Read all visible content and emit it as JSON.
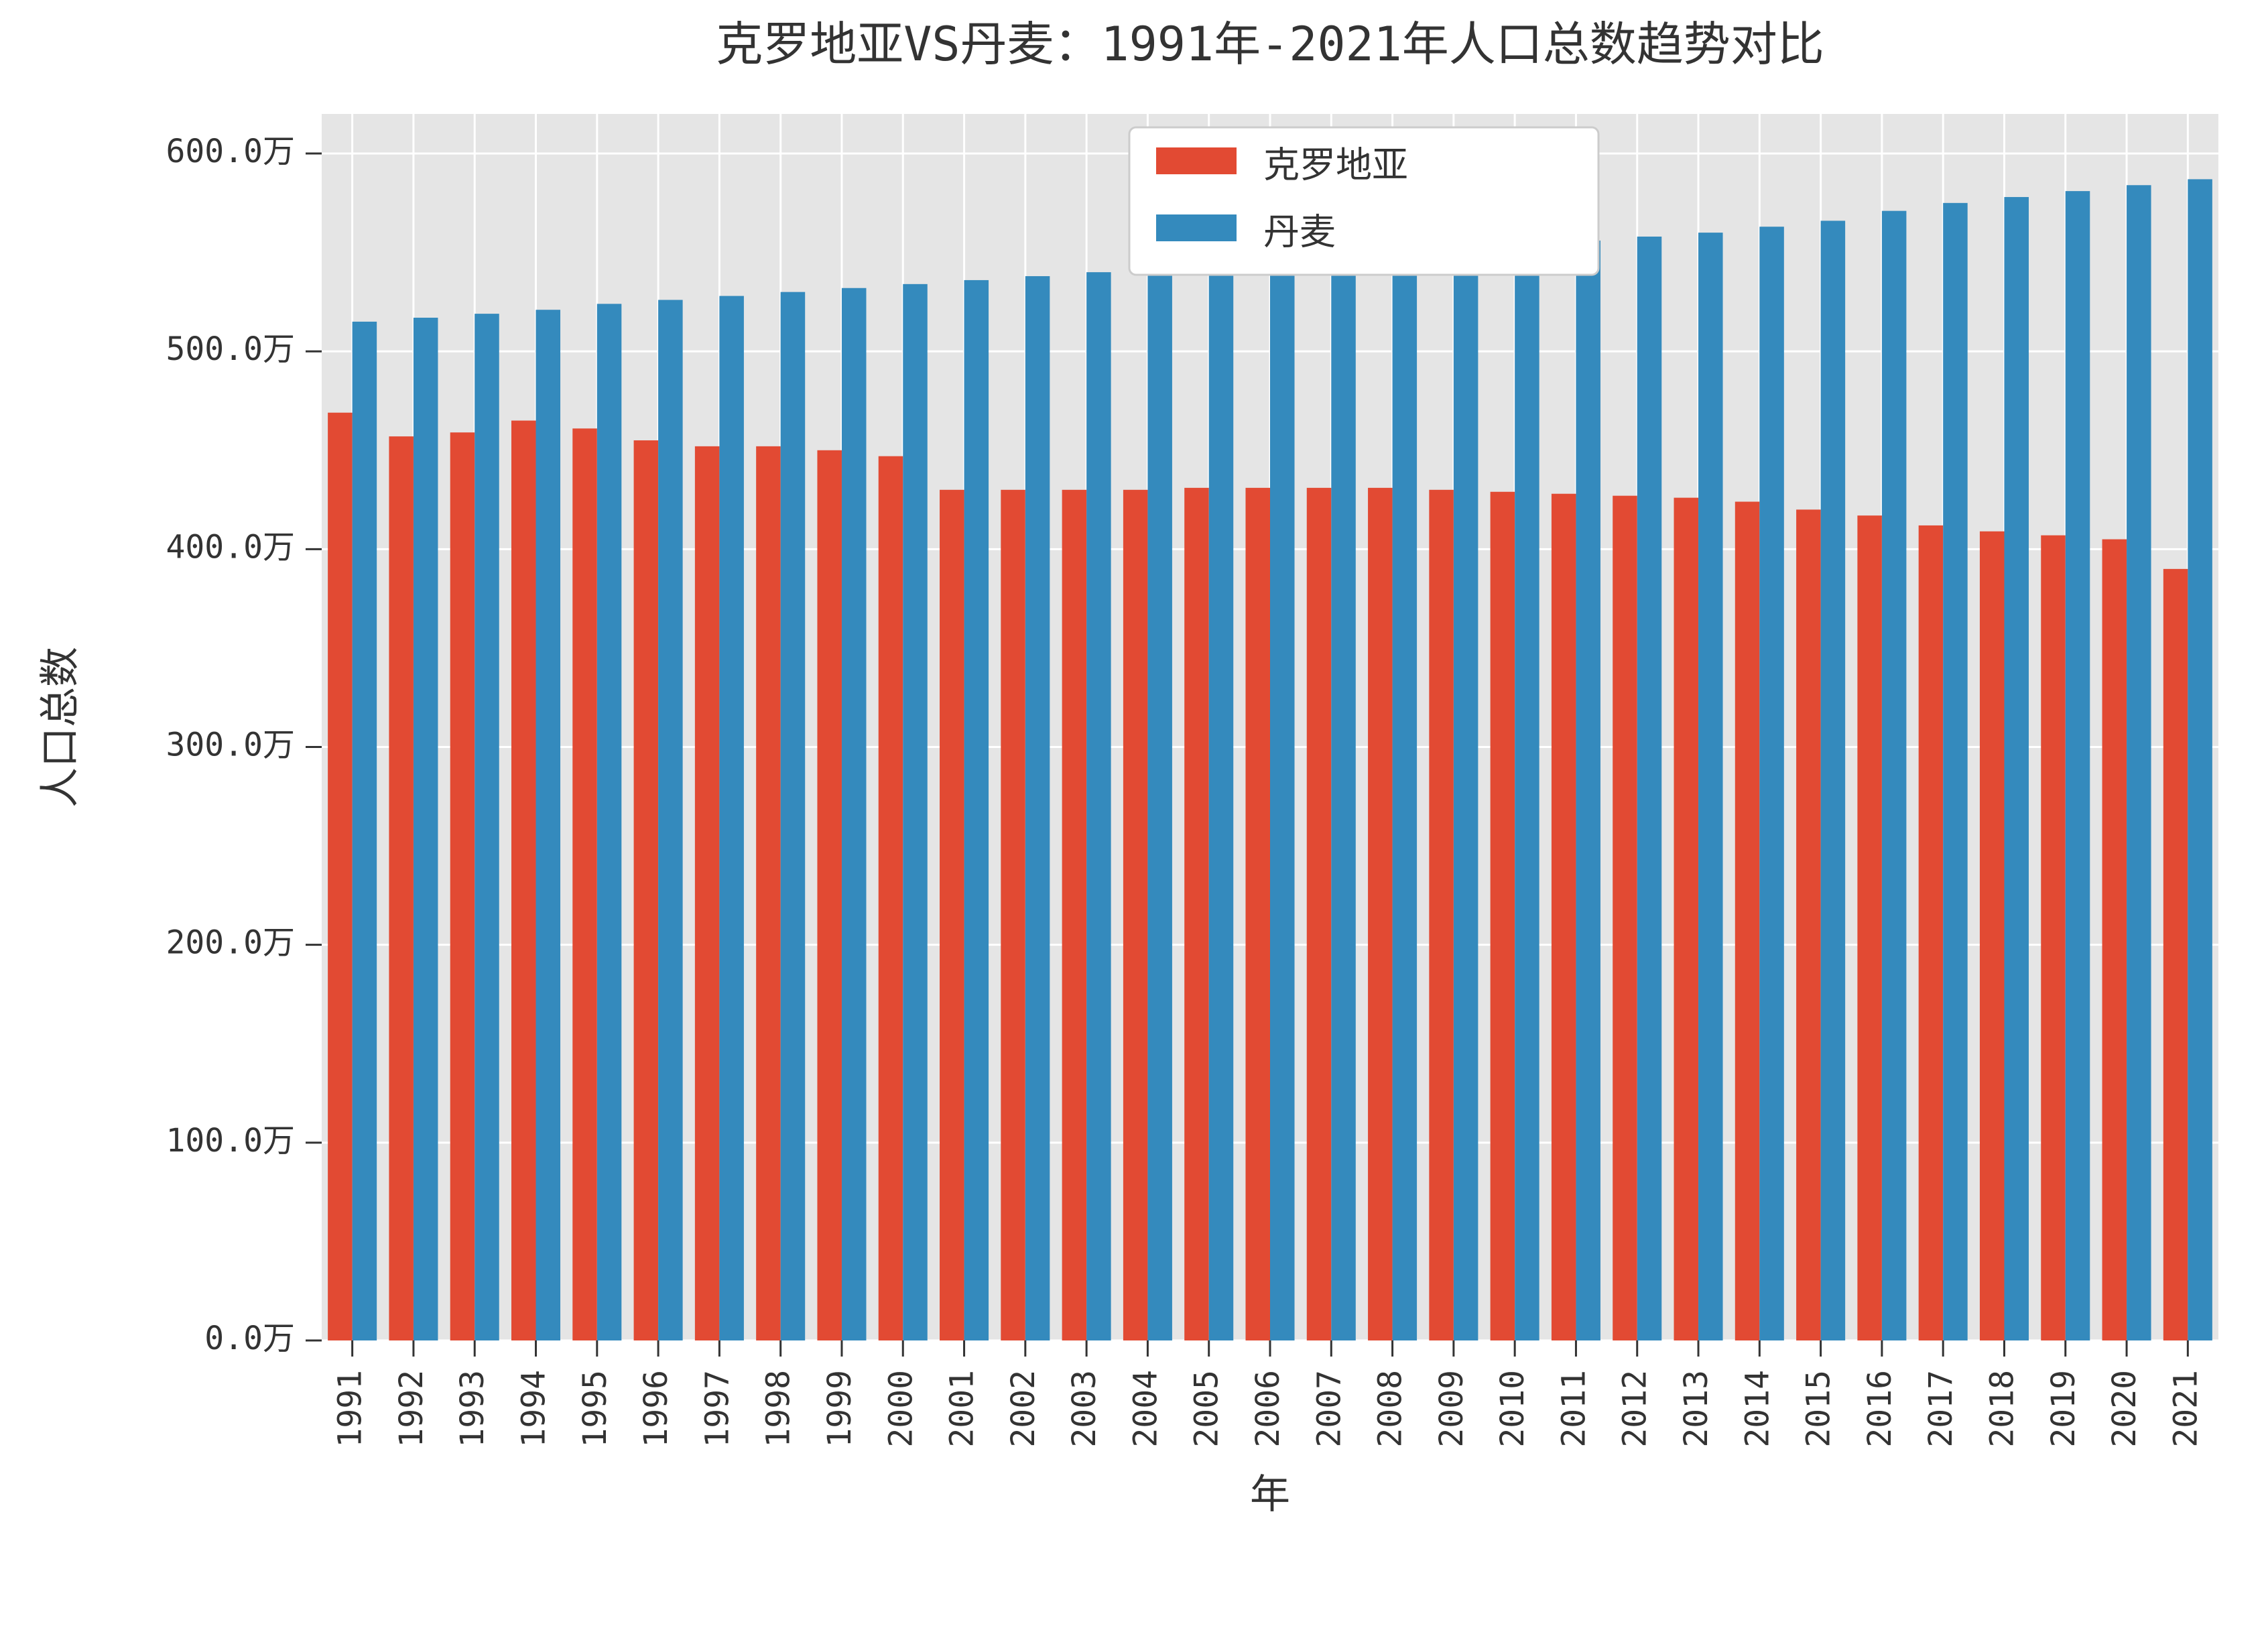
{
  "chart": {
    "type": "grouped-bar",
    "title": "克罗地亚VS丹麦：1991年-2021年人口总数趋势对比",
    "title_fontsize": 70,
    "xlabel": "年",
    "ylabel": "人口总数",
    "axis_label_fontsize": 60,
    "background_color": "#ffffff",
    "plot_background_color": "#e5e5e5",
    "grid_color": "#ffffff",
    "tick_color": "#333333",
    "text_color": "#333333",
    "ylim": [
      0,
      620
    ],
    "ytick_step": 100,
    "ytick_unit": "万",
    "ytick_labels": [
      "0.0万",
      "100.0万",
      "200.0万",
      "300.0万",
      "400.0万",
      "500.0万",
      "600.0万"
    ],
    "tick_label_fontsize": 48,
    "bar_width": 0.4,
    "categories": [
      "1991",
      "1992",
      "1993",
      "1994",
      "1995",
      "1996",
      "1997",
      "1998",
      "1999",
      "2000",
      "2001",
      "2002",
      "2003",
      "2004",
      "2005",
      "2006",
      "2007",
      "2008",
      "2009",
      "2010",
      "2011",
      "2012",
      "2013",
      "2014",
      "2015",
      "2016",
      "2017",
      "2018",
      "2019",
      "2020",
      "2021"
    ],
    "series": [
      {
        "name": "克罗地亚",
        "color": "#e24a33",
        "values": [
          469,
          457,
          459,
          465,
          461,
          455,
          452,
          452,
          450,
          447,
          430,
          430,
          430,
          430,
          431,
          431,
          431,
          431,
          430,
          429,
          428,
          427,
          426,
          424,
          420,
          417,
          412,
          409,
          407,
          405,
          390
        ]
      },
      {
        "name": "丹麦",
        "color": "#348abd",
        "values": [
          515,
          517,
          519,
          521,
          524,
          526,
          528,
          530,
          532,
          534,
          536,
          538,
          540,
          542,
          544,
          546,
          548,
          550,
          552,
          554,
          556,
          558,
          560,
          563,
          566,
          571,
          575,
          578,
          581,
          584,
          587
        ]
      }
    ],
    "legend": {
      "position": "top-center",
      "fontsize": 54,
      "box_fill": "#ffffff",
      "box_stroke": "#cccccc"
    }
  }
}
